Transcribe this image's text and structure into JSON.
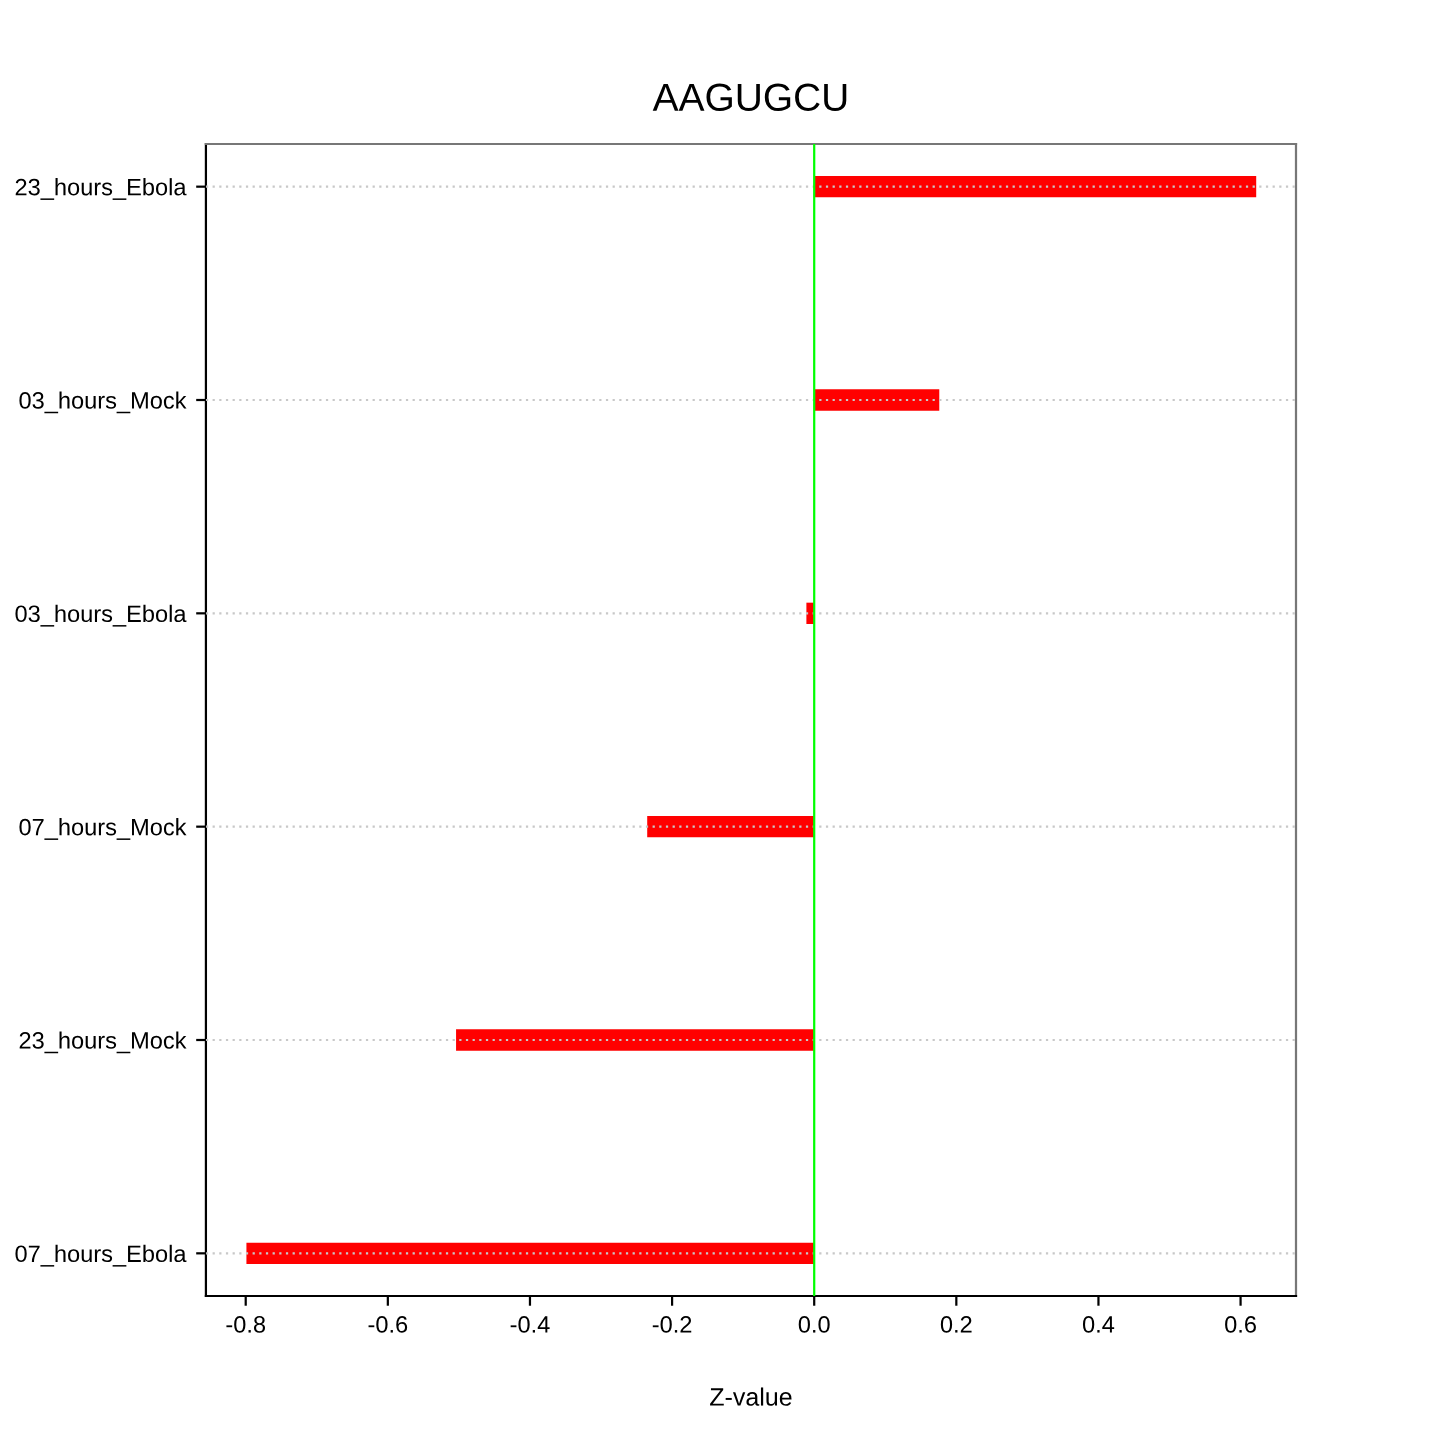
{
  "chart_data": {
    "type": "bar",
    "orientation": "horizontal",
    "title": "AAGUGCU",
    "xlabel": "Z-value",
    "categories": [
      "23_hours_Ebola",
      "03_hours_Mock",
      "03_hours_Ebola",
      "07_hours_Mock",
      "23_hours_Mock",
      "07_hours_Ebola"
    ],
    "values": [
      0.622,
      0.176,
      -0.011,
      -0.235,
      -0.504,
      -0.799
    ],
    "color": "#ff0000",
    "xlim": [
      -0.856,
      0.678
    ],
    "xticks": [
      -0.8,
      -0.6,
      -0.4,
      -0.2,
      {
        "value": 0,
        "label": "0.0"
      },
      0.2,
      0.4,
      0.6
    ],
    "ref_lines": [
      {
        "axis": "x",
        "value": 0,
        "color": "#00ff00"
      }
    ],
    "grid": "y"
  }
}
